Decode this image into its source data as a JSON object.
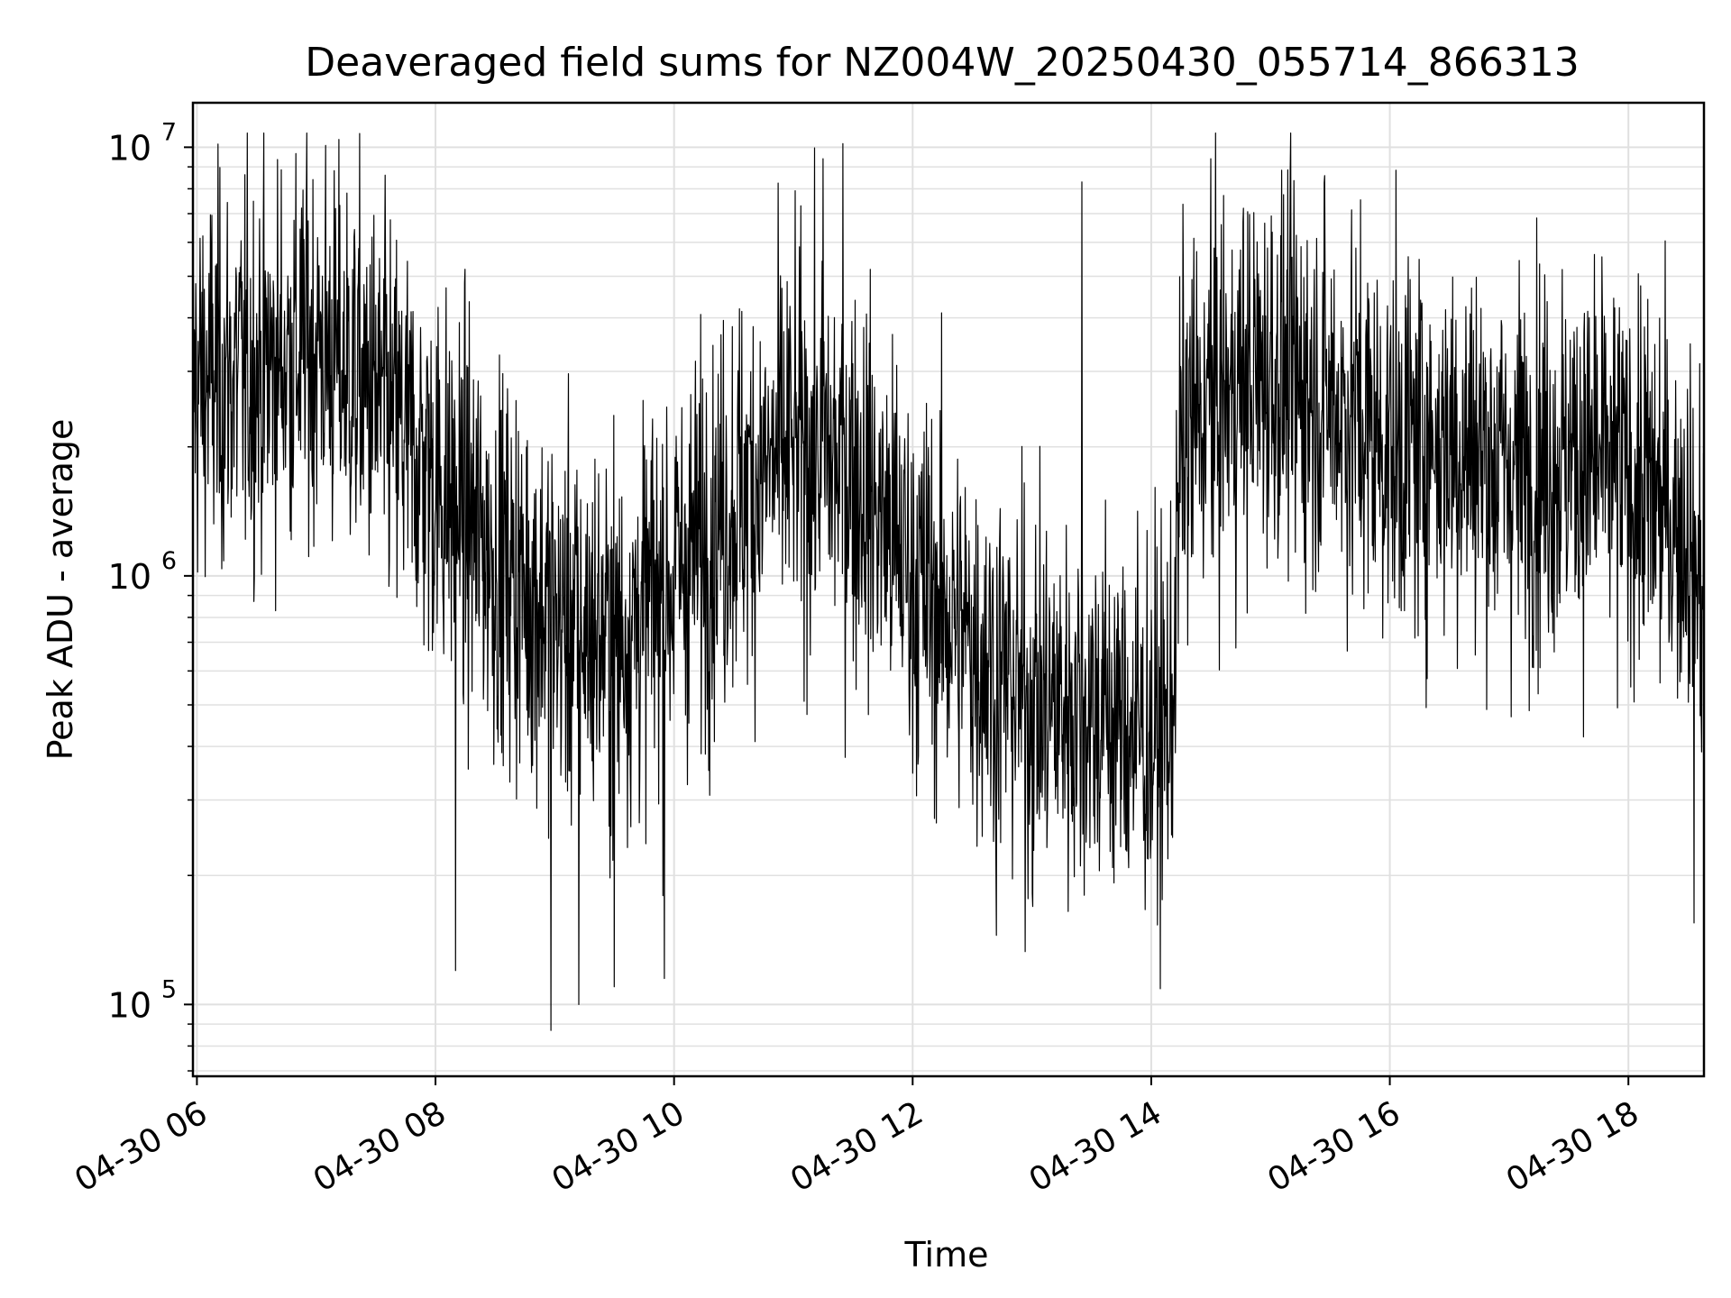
{
  "chart_data": {
    "type": "line",
    "title": "Deaveraged field sums for NZ004W_20250430_055714_866313",
    "xlabel": "Time",
    "ylabel": "Peak ADU - average",
    "yscale": "log",
    "ylim": [
      68000,
      12700000
    ],
    "xlim": [
      "2025-04-30 05:58",
      "2025-04-30 18:38"
    ],
    "grid": true,
    "line_color": "#000000",
    "grid_color": "#e0e0e0",
    "x_ticks": [
      {
        "value": "2025-04-30 06:00",
        "label": "04-30 06"
      },
      {
        "value": "2025-04-30 08:00",
        "label": "04-30 08"
      },
      {
        "value": "2025-04-30 10:00",
        "label": "04-30 10"
      },
      {
        "value": "2025-04-30 12:00",
        "label": "04-30 12"
      },
      {
        "value": "2025-04-30 14:00",
        "label": "04-30 14"
      },
      {
        "value": "2025-04-30 16:00",
        "label": "04-30 16"
      },
      {
        "value": "2025-04-30 18:00",
        "label": "04-30 18"
      }
    ],
    "y_ticks": [
      {
        "value": 100000,
        "base": "10",
        "exp": "5"
      },
      {
        "value": 1000000,
        "base": "10",
        "exp": "6"
      },
      {
        "value": 10000000,
        "base": "10",
        "exp": "7"
      }
    ],
    "series": [
      {
        "trend": [
          [
            "2025-04-30 05:58",
            2800000
          ],
          [
            "2025-04-30 06:30",
            3000000
          ],
          [
            "2025-04-30 07:00",
            3500000
          ],
          [
            "2025-04-30 07:30",
            2600000
          ],
          [
            "2025-04-30 08:00",
            1700000
          ],
          [
            "2025-04-30 08:30",
            1100000
          ],
          [
            "2025-04-30 09:00",
            800000
          ],
          [
            "2025-04-30 09:30",
            700000
          ],
          [
            "2025-04-30 10:00",
            1000000
          ],
          [
            "2025-04-30 10:30",
            1500000
          ],
          [
            "2025-04-30 11:00",
            2000000
          ],
          [
            "2025-04-30 11:30",
            1800000
          ],
          [
            "2025-04-30 12:00",
            1000000
          ],
          [
            "2025-04-30 12:30",
            700000
          ],
          [
            "2025-04-30 13:00",
            500000
          ],
          [
            "2025-04-30 13:30",
            500000
          ],
          [
            "2025-04-30 14:00",
            420000
          ],
          [
            "2025-04-30 14:10",
            450000
          ],
          [
            "2025-04-30 14:15",
            2000000
          ],
          [
            "2025-04-30 14:30",
            2500000
          ],
          [
            "2025-04-30 15:00",
            3000000
          ],
          [
            "2025-04-30 15:30",
            2600000
          ],
          [
            "2025-04-30 16:00",
            2000000
          ],
          [
            "2025-04-30 16:30",
            2100000
          ],
          [
            "2025-04-30 17:00",
            1800000
          ],
          [
            "2025-04-30 17:30",
            1900000
          ],
          [
            "2025-04-30 18:00",
            1700000
          ],
          [
            "2025-04-30 18:30",
            1300000
          ],
          [
            "2025-04-30 18:38",
            900000
          ]
        ],
        "notable_points": [
          [
            "2025-04-30 06:55",
            7000000
          ],
          [
            "2025-04-30 08:10",
            120000
          ],
          [
            "2025-04-30 08:58",
            87000
          ],
          [
            "2025-04-30 09:12",
            100000
          ],
          [
            "2025-04-30 09:30",
            110000
          ],
          [
            "2025-04-30 09:55",
            115000
          ],
          [
            "2025-04-30 11:15",
            9400000
          ],
          [
            "2025-04-30 11:25",
            10200000
          ],
          [
            "2025-04-30 12:42",
            145000
          ],
          [
            "2025-04-30 13:25",
            8300000
          ],
          [
            "2025-04-30 14:30",
            9400000
          ],
          [
            "2025-04-30 18:33",
            155000
          ]
        ]
      }
    ]
  }
}
